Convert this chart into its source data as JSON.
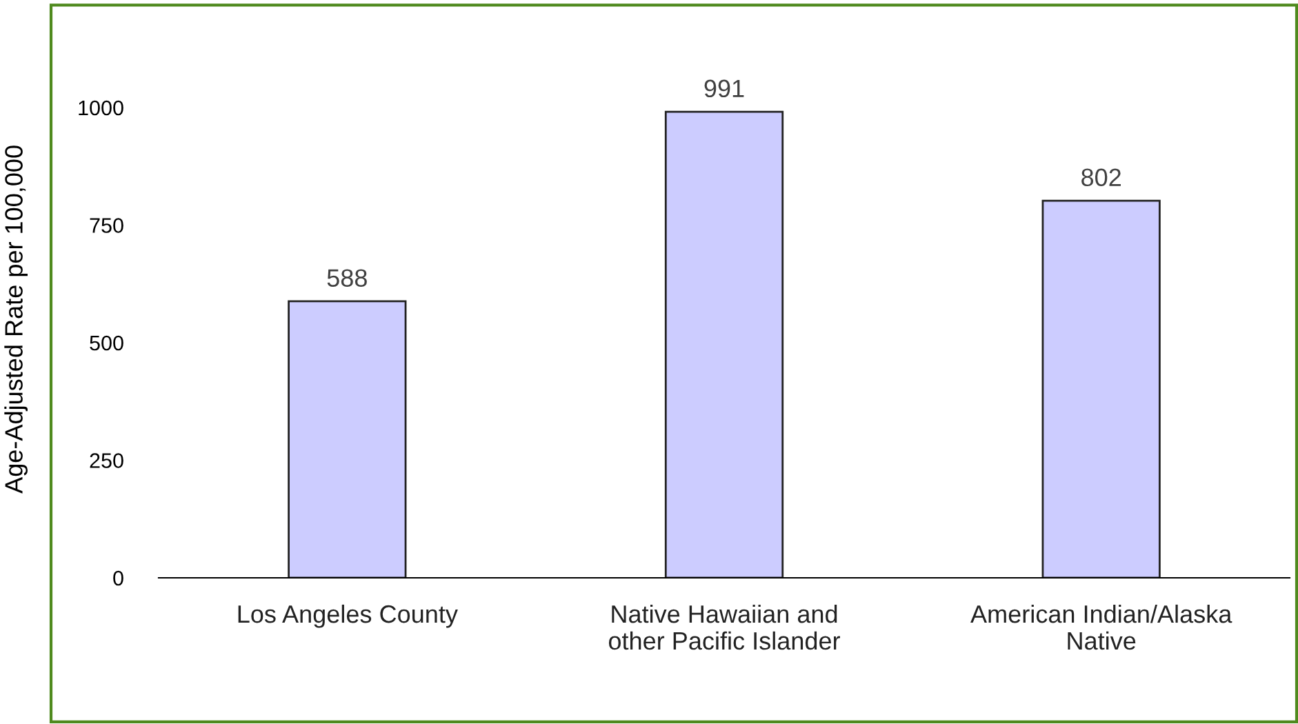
{
  "chart_data": {
    "type": "bar",
    "ylabel": "Age-Adjusted Rate per 100,000",
    "categories": [
      "Los Angeles County",
      "Native Hawaiian and\nother Pacific Islander",
      "American Indian/Alaska\nNative"
    ],
    "values": [
      588,
      991,
      802
    ],
    "color": "#ccccff",
    "ylim": [
      0,
      1000
    ],
    "yticks": [
      0,
      250,
      500,
      750,
      1000
    ],
    "grid": false,
    "data_labels": true
  }
}
